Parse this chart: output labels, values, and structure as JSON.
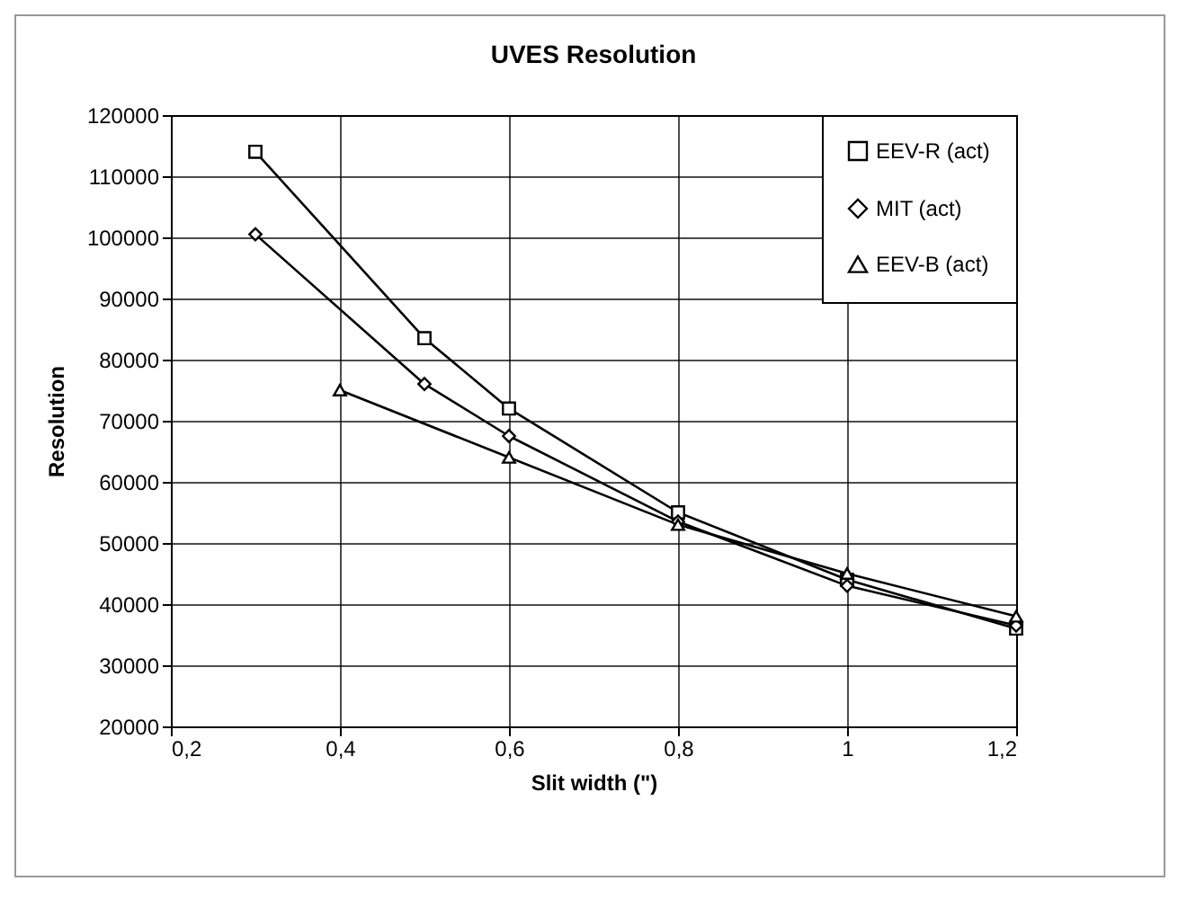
{
  "chart_data": {
    "type": "line",
    "title": "UVES Resolution",
    "xlabel": "Slit width (\")",
    "ylabel": "Resolution",
    "series": [
      {
        "name": "EEV-R (act)",
        "color": "#000000",
        "marker": "square",
        "x": [
          0.3,
          0.5,
          0.6,
          0.8,
          1.0,
          1.2
        ],
        "values": [
          114000,
          83500,
          72000,
          55000,
          44000,
          36000
        ]
      },
      {
        "name": "MIT (act)",
        "color": "#000000",
        "marker": "diamond",
        "x": [
          0.3,
          0.5,
          0.6,
          0.8,
          1.0,
          1.2
        ],
        "values": [
          100500,
          76000,
          67500,
          53500,
          43000,
          36500
        ]
      },
      {
        "name": "EEV-B (act)",
        "color": "#000000",
        "marker": "triangle",
        "x": [
          0.4,
          0.6,
          0.8,
          1.0,
          1.2
        ],
        "values": [
          75000,
          64000,
          53000,
          45000,
          38000
        ]
      }
    ],
    "xlim": [
      0.2,
      1.2
    ],
    "xticks": [
      {
        "value": 0.2,
        "label": "0,2"
      },
      {
        "value": 0.4,
        "label": "0,4"
      },
      {
        "value": 0.6,
        "label": "0,6"
      },
      {
        "value": 0.8,
        "label": "0,8"
      },
      {
        "value": 1,
        "label": "1"
      },
      {
        "value": 1.2,
        "label": "1,2"
      }
    ],
    "ylim": [
      20000,
      120000
    ],
    "yticks": [
      20000,
      30000,
      40000,
      50000,
      60000,
      70000,
      80000,
      90000,
      100000,
      110000,
      120000
    ],
    "grid": true,
    "legend": "top right"
  }
}
